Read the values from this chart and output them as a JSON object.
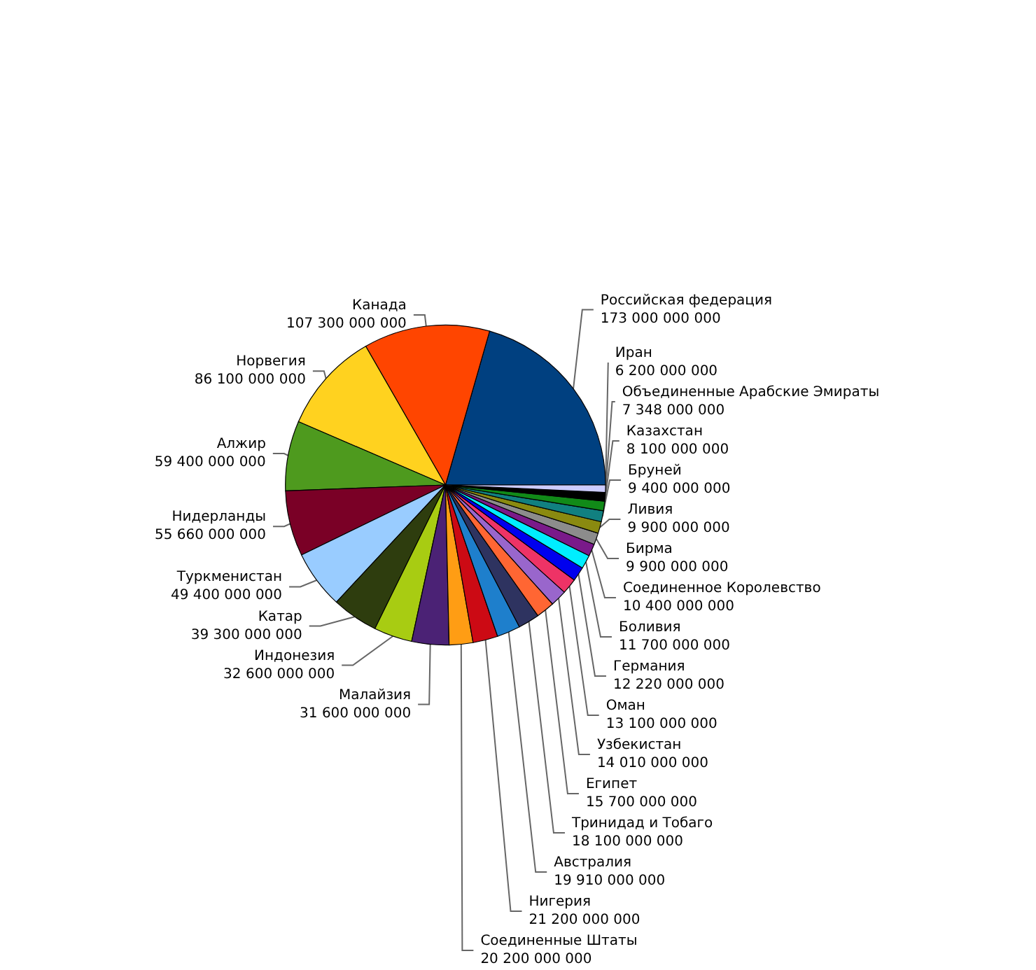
{
  "chart_data": {
    "type": "pie",
    "categories": [
      "Российская федерация",
      "Канада",
      "Норвегия",
      "Алжир",
      "Нидерланды",
      "Туркменистан",
      "Катар",
      "Индонезия",
      "Малайзия",
      "Соединенные Штаты",
      "Нигерия",
      "Австралия",
      "Тринидад и Тобаго",
      "Египет",
      "Узбекистан",
      "Оман",
      "Германия",
      "Боливия",
      "Соединенное Королевство",
      "Бирма",
      "Ливия",
      "Бруней",
      "Казахстан",
      "Объединенные Арабские Эмираты",
      "Иран"
    ],
    "values": [
      173000000000,
      107300000000,
      86100000000,
      59400000000,
      55660000000,
      49400000000,
      39300000000,
      32600000000,
      31600000000,
      20200000000,
      21200000000,
      19910000000,
      18100000000,
      15700000000,
      14010000000,
      13100000000,
      12220000000,
      11700000000,
      10400000000,
      9900000000,
      9900000000,
      9400000000,
      8100000000,
      7348000000,
      6200000000
    ],
    "colors": [
      "#004080",
      "#ff4500",
      "#ffd21f",
      "#4e9a1e",
      "#7a0026",
      "#99ccff",
      "#2e3d0e",
      "#a8cc12",
      "#4b2275",
      "#ff9d14",
      "#cc0a14",
      "#1e7fcc",
      "#2e3360",
      "#ff6633",
      "#9966cc",
      "#ee3366",
      "#0000ee",
      "#00eeff",
      "#7a1a8a",
      "#8c8c8c",
      "#8a8a10",
      "#118080",
      "#118a18",
      "#000000",
      "#ccccff"
    ],
    "data_labels": true
  }
}
